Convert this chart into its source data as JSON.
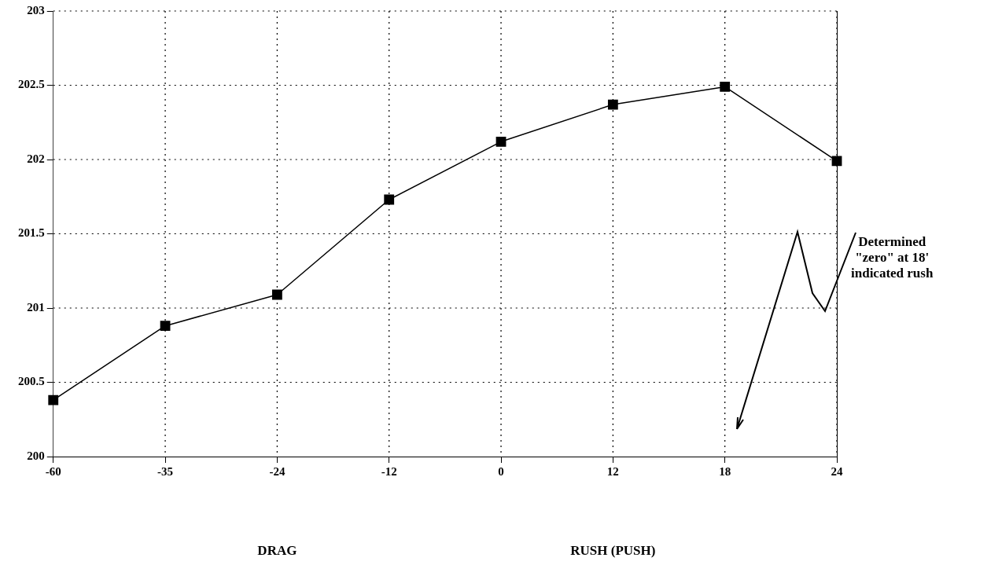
{
  "chart_data": {
    "type": "line",
    "categories": [
      "-60",
      "-35",
      "-24",
      "-12",
      "0",
      "12",
      "18",
      "24"
    ],
    "series": [
      {
        "color": "#000000",
        "values": [
          200.38,
          200.88,
          201.09,
          201.73,
          202.12,
          202.37,
          202.49,
          201.99
        ]
      }
    ],
    "ylim": [
      200,
      203
    ],
    "yticks": [
      200,
      200.5,
      201,
      201.5,
      202,
      202.5,
      203
    ],
    "grid": true,
    "legend": false,
    "marker": "square",
    "line_style": "solid",
    "annotations": [
      "Determined \"zero\" at 18' indicated rush",
      "DRAG",
      "RUSH (PUSH)"
    ]
  }
}
